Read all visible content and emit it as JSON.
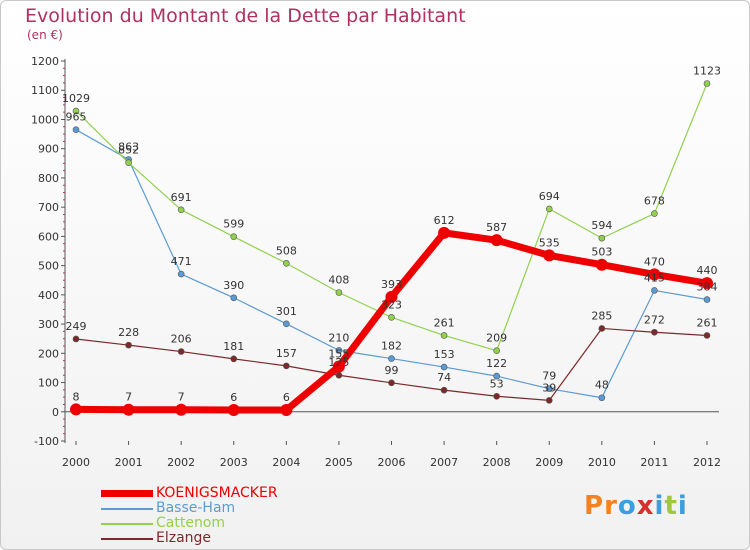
{
  "header": {
    "title": "Evolution du Montant de la Dette par Habitant",
    "subtitle": "(en €)",
    "title_color": "#b03060"
  },
  "logo": {
    "text": "Proxiti",
    "letter_colors": [
      "#f58220",
      "#f58220",
      "#3a9ee0",
      "#d72e2e",
      "#3a9ee0",
      "#a0c83c",
      "#3a9ee0"
    ]
  },
  "chart_data": {
    "type": "line",
    "title": "Evolution du Montant de la Dette par Habitant",
    "subtitle": "(en €)",
    "xlabel": "",
    "ylabel": "",
    "x": [
      "2000",
      "2001",
      "2002",
      "2003",
      "2004",
      "2005",
      "2006",
      "2007",
      "2008",
      "2009",
      "2010",
      "2011",
      "2012"
    ],
    "ylim": [
      -100,
      1200
    ],
    "yticks": [
      -100,
      0,
      100,
      200,
      300,
      400,
      500,
      600,
      700,
      800,
      900,
      1000,
      1100,
      1200
    ],
    "grid": false,
    "legend_position": "bottom-left",
    "series": [
      {
        "name": "KOENIGSMACKER",
        "color": "#ee0000",
        "values": [
          8,
          7,
          7,
          6,
          6,
          155,
          393,
          612,
          587,
          535,
          503,
          470,
          440
        ]
      },
      {
        "name": "Basse-Ham",
        "color": "#5b9bd5",
        "values": [
          965,
          863,
          471,
          390,
          301,
          210,
          182,
          153,
          122,
          79,
          48,
          415,
          384
        ]
      },
      {
        "name": "Cattenom",
        "color": "#92d050",
        "values": [
          1029,
          852,
          691,
          599,
          508,
          408,
          323,
          261,
          209,
          694,
          594,
          678,
          1123
        ]
      },
      {
        "name": "Elzange",
        "color": "#7a2a2a",
        "values": [
          249,
          228,
          206,
          181,
          157,
          125,
          99,
          74,
          53,
          39,
          285,
          272,
          261
        ]
      }
    ],
    "data_labels": [
      [
        "8",
        "7",
        "7",
        "6",
        "6",
        "155",
        "393",
        "612",
        "587",
        "535",
        "503",
        "470",
        "440"
      ],
      [
        "965",
        "863",
        "471",
        "390",
        "301",
        "210",
        "182",
        "153",
        "122",
        "79",
        "48",
        "415",
        "384"
      ],
      [
        "1029",
        "852",
        "691",
        "599",
        "508",
        "408",
        "323",
        "261",
        "209",
        "694",
        "594",
        "678",
        "1123"
      ],
      [
        "249",
        "228",
        "206",
        "181",
        "157",
        "125",
        "99",
        "74",
        "53",
        "39",
        "285",
        "272",
        "261"
      ]
    ]
  }
}
